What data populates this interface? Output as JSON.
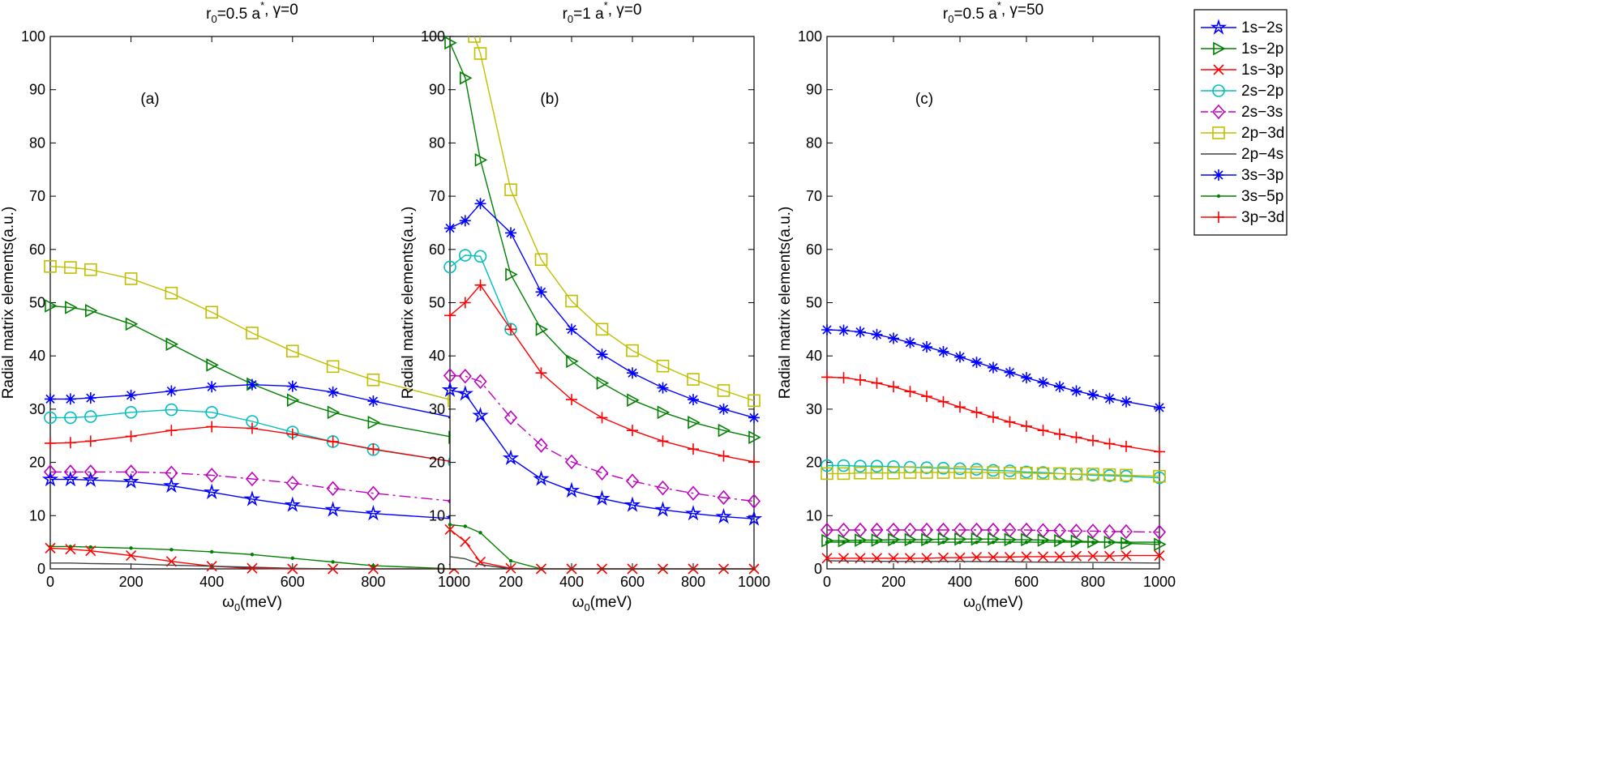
{
  "legend_items": [
    {
      "key": "1s2s",
      "label": "1s−2s",
      "color": "#0000ff",
      "marker": "star",
      "dash": "solid"
    },
    {
      "key": "1s2p",
      "label": "1s−2p",
      "color": "#008000",
      "marker": "triangle-right",
      "dash": "solid"
    },
    {
      "key": "1s3p",
      "label": "1s−3p",
      "color": "#ff0000",
      "marker": "x",
      "dash": "solid"
    },
    {
      "key": "2s2p",
      "label": "2s−2p",
      "color": "#00bfbf",
      "marker": "circle",
      "dash": "solid"
    },
    {
      "key": "2s3s",
      "label": "2s−3s",
      "color": "#bf00bf",
      "marker": "diamond",
      "dash": "dashdot"
    },
    {
      "key": "2p3d",
      "label": "2p−3d",
      "color": "#bfbf00",
      "marker": "square",
      "dash": "solid"
    },
    {
      "key": "2p4s",
      "label": "2p−4s",
      "color": "#404040",
      "marker": "none",
      "dash": "solid"
    },
    {
      "key": "3s3p",
      "label": "3s−3p",
      "color": "#0000ff",
      "marker": "asterisk",
      "dash": "solid"
    },
    {
      "key": "3s5p",
      "label": "3s−5p",
      "color": "#008000",
      "marker": "dot",
      "dash": "solid"
    },
    {
      "key": "3p3d",
      "label": "3p−3d",
      "color": "#ff0000",
      "marker": "plus",
      "dash": "solid"
    }
  ],
  "chart_data": [
    {
      "type": "line",
      "panel_id": "a",
      "title": {
        "prefix": "r",
        "sub": "0",
        "mid": "=0.5 a",
        "sup": "*",
        "suffix": ", γ=0"
      },
      "annotation": "(a)",
      "xlabel": {
        "prefix": "ω",
        "sub": "0",
        "suffix": "(meV)"
      },
      "ylabel": "Radial matrix elements(a.u.)",
      "xlim": [
        0,
        1000
      ],
      "ylim": [
        0,
        100
      ],
      "xticks": [
        0,
        200,
        400,
        600,
        800,
        1000
      ],
      "yticks": [
        0,
        10,
        20,
        30,
        40,
        50,
        60,
        70,
        80,
        90,
        100
      ],
      "series": [
        {
          "key": "2p3d",
          "x": [
            0,
            50,
            100,
            200,
            300,
            400,
            500,
            600,
            700,
            800,
            1000
          ],
          "y": [
            56.8,
            56.6,
            56.2,
            54.5,
            51.8,
            48.2,
            44.3,
            40.9,
            38.0,
            35.5,
            31.6
          ]
        },
        {
          "key": "1s2p",
          "x": [
            0,
            50,
            100,
            200,
            300,
            400,
            500,
            600,
            700,
            800,
            1000
          ],
          "y": [
            49.4,
            49.1,
            48.5,
            46.0,
            42.2,
            38.3,
            34.7,
            31.7,
            29.4,
            27.5,
            24.7
          ]
        },
        {
          "key": "3s3p",
          "x": [
            0,
            50,
            100,
            200,
            300,
            400,
            500,
            600,
            700,
            800,
            1000
          ],
          "y": [
            31.9,
            31.9,
            32.1,
            32.6,
            33.4,
            34.2,
            34.6,
            34.3,
            33.2,
            31.5,
            28.4
          ]
        },
        {
          "key": "2s2p",
          "x": [
            0,
            50,
            100,
            200,
            300,
            400,
            500,
            600,
            700,
            800,
            1000
          ],
          "y": [
            28.4,
            28.4,
            28.6,
            29.4,
            29.9,
            29.4,
            27.7,
            25.7,
            23.9,
            22.4,
            20.1
          ]
        },
        {
          "key": "3p3d",
          "x": [
            0,
            50,
            100,
            200,
            300,
            400,
            500,
            600,
            700,
            800,
            1000
          ],
          "y": [
            23.6,
            23.7,
            24.0,
            24.9,
            26.0,
            26.7,
            26.4,
            25.3,
            23.9,
            22.5,
            20.1
          ]
        },
        {
          "key": "2s3s",
          "x": [
            0,
            50,
            100,
            200,
            300,
            400,
            500,
            600,
            700,
            800,
            1000
          ],
          "y": [
            18.2,
            18.2,
            18.2,
            18.2,
            18.0,
            17.6,
            16.9,
            16.1,
            15.1,
            14.2,
            12.7
          ]
        },
        {
          "key": "1s2s",
          "x": [
            0,
            50,
            100,
            200,
            300,
            400,
            500,
            600,
            700,
            800,
            1000
          ],
          "y": [
            16.8,
            16.8,
            16.7,
            16.4,
            15.6,
            14.4,
            13.1,
            12.0,
            11.1,
            10.4,
            9.4
          ]
        },
        {
          "key": "3s5p",
          "x": [
            0,
            50,
            100,
            200,
            300,
            400,
            500,
            600,
            700,
            800,
            1000
          ],
          "y": [
            4.2,
            4.2,
            4.1,
            3.9,
            3.6,
            3.2,
            2.7,
            2.0,
            1.3,
            0.6,
            0.0
          ]
        },
        {
          "key": "1s3p",
          "x": [
            0,
            50,
            100,
            200,
            300,
            400,
            500,
            600,
            700,
            800,
            1000
          ],
          "y": [
            3.9,
            3.7,
            3.4,
            2.5,
            1.4,
            0.5,
            0.1,
            0.0,
            0.0,
            0.0,
            0.0
          ]
        },
        {
          "key": "2p4s",
          "x": [
            0,
            50,
            100,
            200,
            300,
            400,
            500,
            600,
            700,
            800,
            1000
          ],
          "y": [
            1.1,
            1.1,
            1.0,
            0.9,
            0.7,
            0.5,
            0.3,
            0.1,
            0.0,
            0.0,
            0.0
          ]
        }
      ]
    },
    {
      "type": "line",
      "panel_id": "b",
      "title": {
        "prefix": "r",
        "sub": "0",
        "mid": "=1 a",
        "sup": "*",
        "suffix": ", γ=0"
      },
      "annotation": "(b)",
      "xlabel": {
        "prefix": "ω",
        "sub": "0",
        "suffix": "(meV)"
      },
      "ylabel": "Radial matrix elements(a.u.)",
      "xlim": [
        0,
        1000
      ],
      "ylim": [
        0,
        100
      ],
      "xticks": [
        0,
        200,
        400,
        600,
        800,
        1000
      ],
      "yticks": [
        0,
        10,
        20,
        30,
        40,
        50,
        60,
        70,
        80,
        90,
        100
      ],
      "series": [
        {
          "key": "2p3d",
          "x": [
            80,
            100,
            200,
            300,
            400,
            500,
            600,
            700,
            800,
            900,
            1000
          ],
          "y": [
            100.0,
            96.8,
            71.2,
            58.1,
            50.3,
            45.0,
            41.0,
            38.1,
            35.6,
            33.5,
            31.6
          ]
        },
        {
          "key": "1s2p",
          "x": [
            0,
            50,
            100,
            200,
            300,
            400,
            500,
            600,
            700,
            800,
            900,
            1000
          ],
          "y": [
            98.8,
            92.2,
            76.8,
            55.3,
            45.0,
            39.0,
            34.9,
            31.7,
            29.4,
            27.5,
            26.0,
            24.7
          ]
        },
        {
          "key": "3s3p",
          "x": [
            0,
            50,
            100,
            200,
            300,
            400,
            500,
            600,
            700,
            800,
            900,
            1000
          ],
          "y": [
            64.0,
            65.4,
            68.6,
            63.1,
            52.0,
            45.0,
            40.3,
            36.8,
            34.0,
            31.8,
            30.0,
            28.4
          ]
        },
        {
          "key": "2s2p",
          "x": [
            0,
            50,
            100,
            200
          ],
          "y": [
            56.7,
            58.9,
            58.7,
            45.0
          ]
        },
        {
          "key": "3p3d",
          "x": [
            0,
            50,
            100,
            200,
            300,
            400,
            500,
            600,
            700,
            800,
            900,
            1000
          ],
          "y": [
            47.6,
            50.0,
            53.3,
            45.0,
            36.8,
            31.8,
            28.4,
            26.0,
            24.0,
            22.5,
            21.2,
            20.1
          ]
        },
        {
          "key": "2s3s",
          "x": [
            0,
            50,
            100,
            200,
            300,
            400,
            500,
            600,
            700,
            800,
            900,
            1000
          ],
          "y": [
            36.3,
            36.2,
            35.2,
            28.4,
            23.2,
            20.1,
            18.0,
            16.5,
            15.2,
            14.2,
            13.4,
            12.7
          ]
        },
        {
          "key": "1s2s",
          "x": [
            0,
            50,
            100,
            200,
            300,
            400,
            500,
            600,
            700,
            800,
            900,
            1000
          ],
          "y": [
            33.6,
            32.9,
            28.8,
            20.8,
            16.9,
            14.7,
            13.2,
            12.0,
            11.1,
            10.4,
            9.8,
            9.4
          ]
        },
        {
          "key": "3s5p",
          "x": [
            0,
            50,
            100,
            200,
            300,
            400,
            500,
            600,
            700,
            800,
            900,
            1000
          ],
          "y": [
            8.3,
            8.0,
            6.8,
            1.5,
            0.0,
            0.0,
            0.0,
            0.0,
            0.0,
            0.0,
            0.0,
            0.0
          ]
        },
        {
          "key": "1s3p",
          "x": [
            0,
            50,
            100,
            200,
            300,
            400,
            500,
            600,
            700,
            800,
            900,
            1000
          ],
          "y": [
            7.4,
            5.1,
            1.3,
            0.1,
            0.0,
            0.0,
            0.0,
            0.0,
            0.0,
            0.0,
            0.0,
            0.0
          ]
        },
        {
          "key": "2p4s",
          "x": [
            0,
            50,
            100,
            200,
            300,
            400,
            500,
            600,
            700,
            800,
            900,
            1000
          ],
          "y": [
            2.3,
            1.9,
            0.8,
            0.0,
            0.0,
            0.0,
            0.0,
            0.0,
            0.0,
            0.0,
            0.0,
            0.0
          ]
        }
      ]
    },
    {
      "type": "line",
      "panel_id": "c",
      "title": {
        "prefix": "r",
        "sub": "0",
        "mid": "=0.5 a",
        "sup": "*",
        "suffix": ", γ=50"
      },
      "annotation": "(c)",
      "xlabel": {
        "prefix": "ω",
        "sub": "0",
        "suffix": "(meV)"
      },
      "ylabel": "Radial matrix elements(a.u.)",
      "xlim": [
        0,
        1000
      ],
      "ylim": [
        0,
        100
      ],
      "xticks": [
        0,
        200,
        400,
        600,
        800,
        1000
      ],
      "yticks": [
        0,
        10,
        20,
        30,
        40,
        50,
        60,
        70,
        80,
        90,
        100
      ],
      "series": [
        {
          "key": "3s3p",
          "x": [
            0,
            50,
            100,
            150,
            200,
            250,
            300,
            350,
            400,
            450,
            500,
            550,
            600,
            650,
            700,
            750,
            800,
            850,
            900,
            1000
          ],
          "y": [
            44.9,
            44.8,
            44.5,
            44.0,
            43.3,
            42.5,
            41.7,
            40.8,
            39.8,
            38.8,
            37.8,
            36.9,
            35.9,
            35.0,
            34.2,
            33.4,
            32.7,
            32.0,
            31.4,
            30.3
          ]
        },
        {
          "key": "3p3d",
          "x": [
            0,
            50,
            100,
            150,
            200,
            250,
            300,
            350,
            400,
            450,
            500,
            550,
            600,
            650,
            700,
            750,
            800,
            850,
            900,
            1000
          ],
          "y": [
            36.0,
            35.9,
            35.5,
            34.9,
            34.2,
            33.3,
            32.4,
            31.4,
            30.4,
            29.4,
            28.5,
            27.6,
            26.8,
            26.0,
            25.3,
            24.7,
            24.1,
            23.5,
            23.0,
            22.0
          ]
        },
        {
          "key": "2s2p",
          "x": [
            0,
            50,
            100,
            150,
            200,
            250,
            300,
            350,
            400,
            450,
            500,
            550,
            600,
            650,
            700,
            750,
            800,
            850,
            900,
            1000
          ],
          "y": [
            19.4,
            19.4,
            19.3,
            19.3,
            19.2,
            19.1,
            19.0,
            18.9,
            18.8,
            18.7,
            18.5,
            18.4,
            18.2,
            18.1,
            17.9,
            17.8,
            17.6,
            17.5,
            17.4,
            17.1
          ]
        },
        {
          "key": "2p3d",
          "x": [
            0,
            50,
            100,
            150,
            200,
            250,
            300,
            350,
            400,
            450,
            500,
            550,
            600,
            650,
            700,
            750,
            800,
            850,
            900,
            1000
          ],
          "y": [
            17.9,
            17.9,
            18.0,
            18.0,
            18.0,
            18.1,
            18.1,
            18.1,
            18.1,
            18.1,
            18.1,
            18.0,
            18.0,
            17.9,
            17.9,
            17.8,
            17.8,
            17.7,
            17.6,
            17.4
          ]
        },
        {
          "key": "2s3s",
          "x": [
            0,
            50,
            100,
            150,
            200,
            250,
            300,
            350,
            400,
            450,
            500,
            550,
            600,
            650,
            700,
            750,
            800,
            850,
            900,
            1000
          ],
          "y": [
            7.3,
            7.3,
            7.3,
            7.3,
            7.3,
            7.3,
            7.3,
            7.3,
            7.3,
            7.3,
            7.3,
            7.3,
            7.3,
            7.2,
            7.2,
            7.1,
            7.1,
            7.0,
            7.0,
            6.9
          ]
        },
        {
          "key": "1s2p",
          "x": [
            0,
            50,
            100,
            150,
            200,
            250,
            300,
            350,
            400,
            450,
            500,
            550,
            600,
            650,
            700,
            750,
            800,
            850,
            900,
            1000
          ],
          "y": [
            5.3,
            5.3,
            5.4,
            5.4,
            5.5,
            5.5,
            5.5,
            5.6,
            5.6,
            5.6,
            5.6,
            5.5,
            5.5,
            5.4,
            5.3,
            5.2,
            5.1,
            5.0,
            4.8,
            4.6
          ]
        },
        {
          "key": "3s5p",
          "x": [
            0,
            50,
            100,
            150,
            200,
            250,
            300,
            350,
            400,
            450,
            500,
            550,
            600,
            650,
            700,
            750,
            800,
            850,
            900,
            1000
          ],
          "y": [
            5.0,
            5.0,
            5.0,
            5.0,
            5.0,
            5.0,
            5.0,
            5.0,
            5.0,
            5.0,
            5.0,
            5.0,
            5.0,
            5.0,
            5.0,
            5.0,
            5.0,
            5.0,
            5.0,
            5.0
          ]
        },
        {
          "key": "1s3p",
          "x": [
            0,
            50,
            100,
            150,
            200,
            250,
            300,
            350,
            400,
            450,
            500,
            550,
            600,
            650,
            700,
            750,
            800,
            850,
            900,
            1000
          ],
          "y": [
            2.0,
            2.0,
            2.0,
            2.0,
            2.0,
            2.0,
            2.0,
            2.1,
            2.1,
            2.2,
            2.2,
            2.2,
            2.3,
            2.3,
            2.3,
            2.4,
            2.4,
            2.4,
            2.5,
            2.5
          ]
        },
        {
          "key": "2p4s",
          "x": [
            0,
            200,
            400,
            600,
            800,
            1000
          ],
          "y": [
            1.5,
            1.4,
            1.4,
            1.3,
            1.2,
            1.1
          ]
        }
      ]
    }
  ]
}
